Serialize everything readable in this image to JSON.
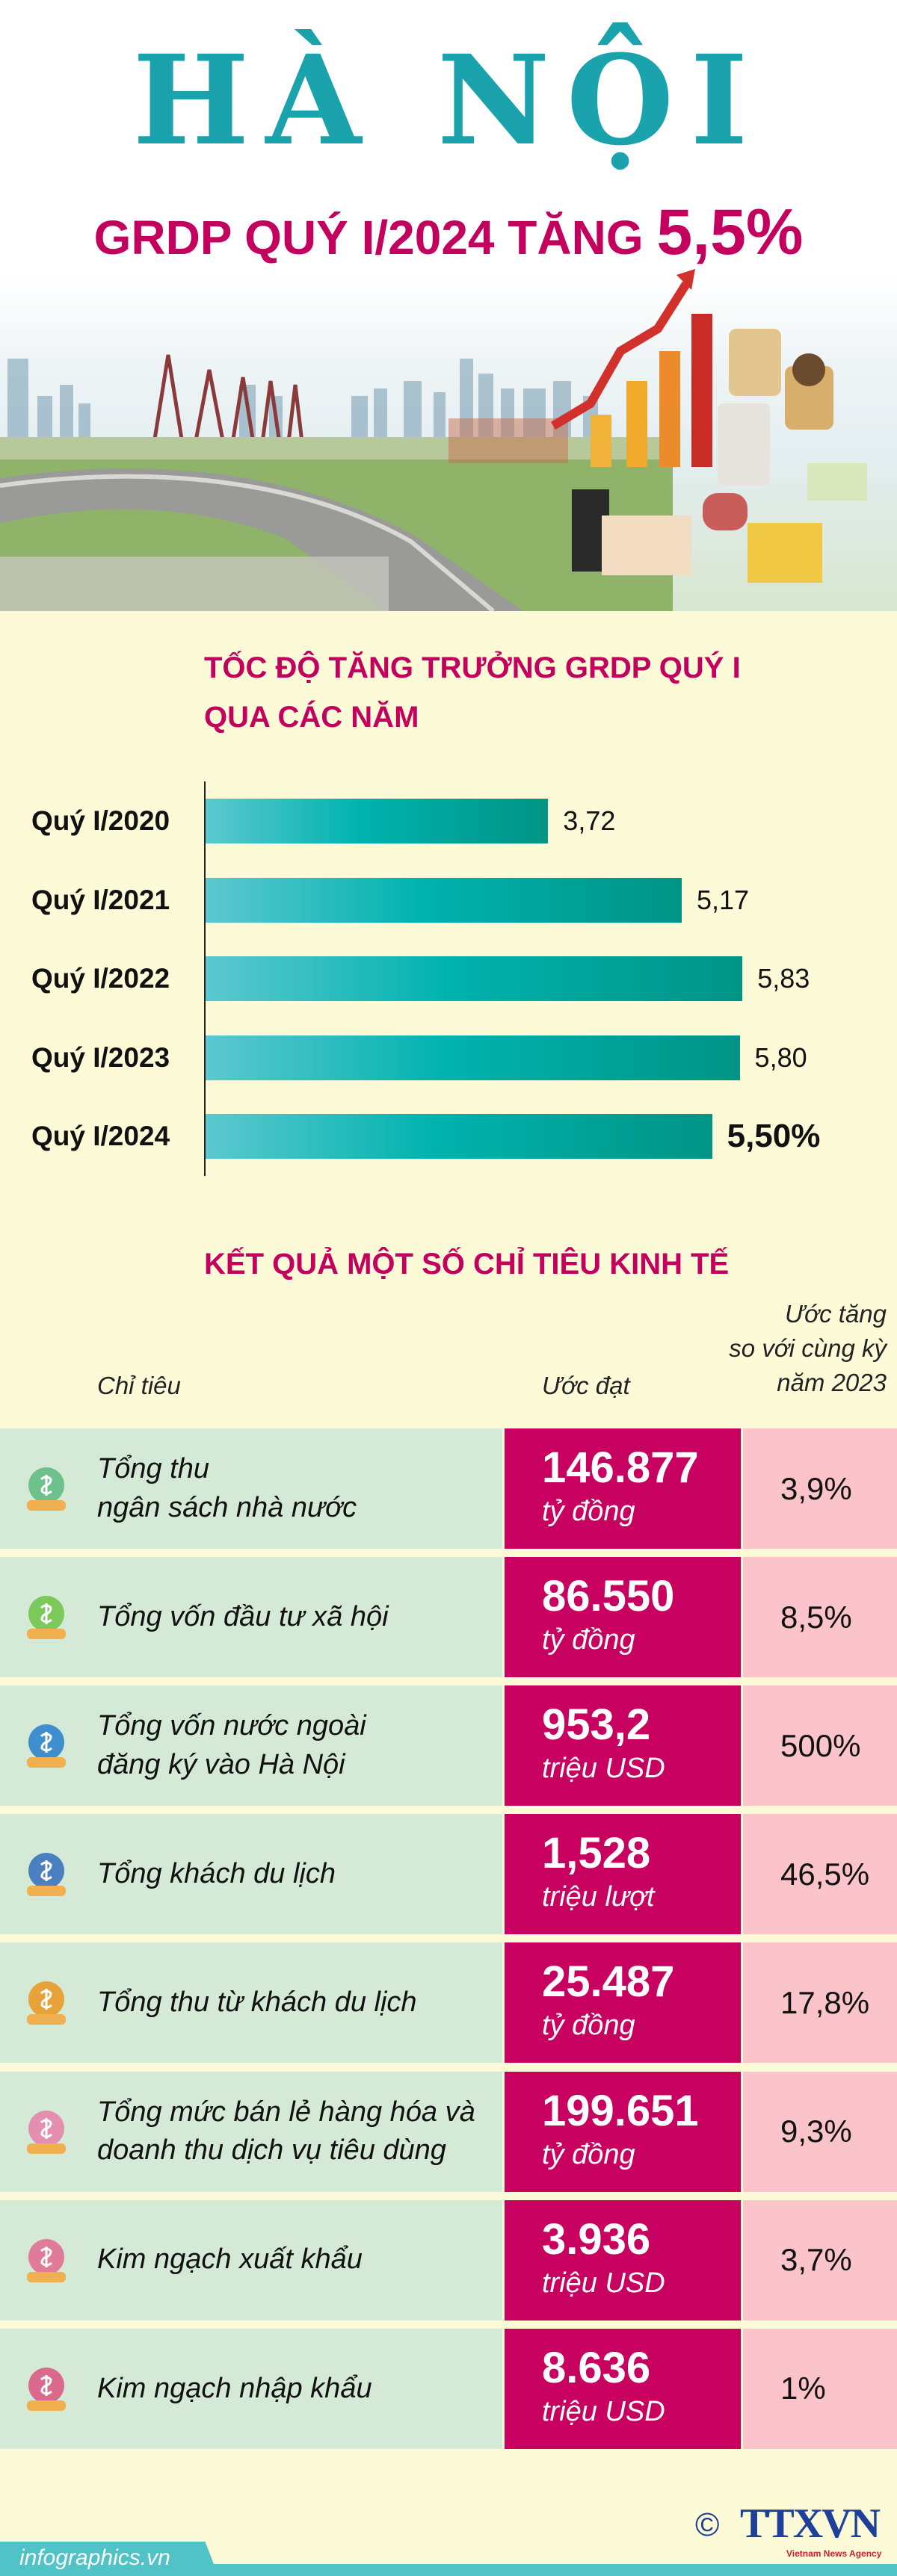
{
  "header": {
    "title": "HÀ NỘI",
    "subtitle_prefix": "GRDP QUÝ I/2024 TĂNG",
    "subtitle_value": "5,5%"
  },
  "chart_data": {
    "type": "bar",
    "orientation": "horizontal",
    "title_line1": "TỐC ĐỘ TĂNG TRƯỞNG GRDP QUÝ I",
    "title_line2": "QUA CÁC NĂM",
    "categories": [
      "Quý I/2020",
      "Quý I/2021",
      "Quý I/2022",
      "Quý I/2023",
      "Quý I/2024"
    ],
    "values": [
      3.72,
      5.17,
      5.83,
      5.8,
      5.5
    ],
    "value_labels": [
      "3,72",
      "5,17",
      "5,83",
      "5,80",
      "5,50%"
    ],
    "xlabel": "",
    "ylabel": "",
    "xlim": [
      0,
      7.4
    ],
    "grid": false
  },
  "indicators": {
    "title": "KẾT QUẢ MỘT SỐ CHỈ TIÊU KINH TẾ",
    "col_indicator": "Chỉ tiêu",
    "col_estimate": "Ước đạt",
    "col_growth_1": "Ước tăng",
    "col_growth_2": "so với cùng kỳ",
    "col_growth_3": "năm 2023",
    "rows": [
      {
        "icon": "money-bag-hand-icon",
        "label": "Tổng thu\nngân sách nhà nước",
        "value": "146.877",
        "unit": "tỷ đồng",
        "growth": "3,9%"
      },
      {
        "icon": "cash-plant-icon",
        "label": "Tổng vốn đầu tư xã hội",
        "value": "86.550",
        "unit": "tỷ đồng",
        "growth": "8,5%"
      },
      {
        "icon": "globe-coins-icon",
        "label": "Tổng vốn nước ngoài\nđăng ký vào Hà Nội",
        "value": "953,2",
        "unit": "triệu USD",
        "growth": "500%"
      },
      {
        "icon": "tourist-luggage-icon",
        "label": "Tổng khách du lịch",
        "value": "1,528",
        "unit": "triệu lượt",
        "growth": "46,5%"
      },
      {
        "icon": "money-cycle-icon",
        "label": "Tổng thu từ khách du lịch",
        "value": "25.487",
        "unit": "tỷ đồng",
        "growth": "17,8%"
      },
      {
        "icon": "shopping-cart-icon",
        "label": "Tổng mức bán lẻ hàng hóa và\ndoanh thu dịch vụ tiêu dùng",
        "value": "199.651",
        "unit": "tỷ đồng",
        "growth": "9,3%"
      },
      {
        "icon": "crane-export-icon",
        "label": "Kim ngạch xuất khẩu",
        "value": "3.936",
        "unit": "triệu USD",
        "growth": "3,7%"
      },
      {
        "icon": "container-import-icon",
        "label": "Kim ngạch nhập khẩu",
        "value": "8.636",
        "unit": "triệu USD",
        "growth": "1%"
      }
    ]
  },
  "footer": {
    "site": "infographics.vn",
    "copyright": "©",
    "logo": "TTXVN",
    "agency": "Vietnam News Agency"
  },
  "colors": {
    "teal": "#1aa3ad",
    "magenta": "#c8005f",
    "pink": "#fbc3ca",
    "green": "#d5ead6",
    "cream": "#fdfad8"
  }
}
